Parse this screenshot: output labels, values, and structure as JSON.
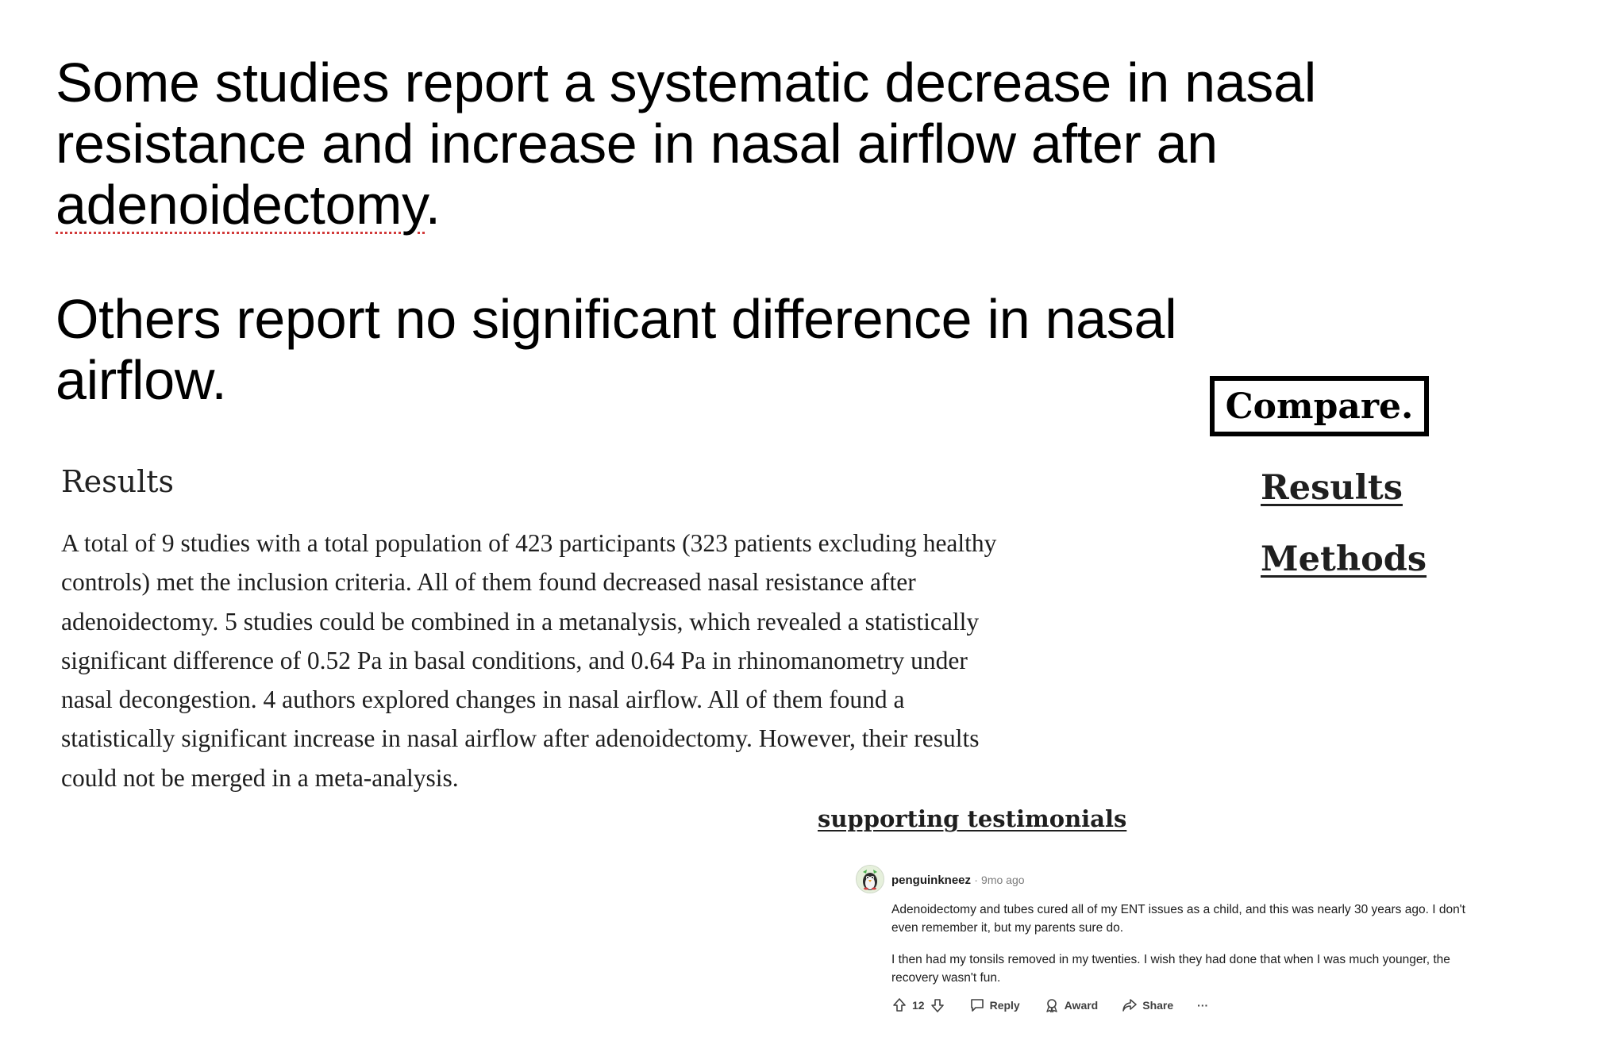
{
  "claims": {
    "claim1_before": "Some studies report a systematic decrease in nasal resistance and increase in nasal airflow after an ",
    "claim1_term": "adenoidectomy",
    "claim1_after": ".",
    "claim2": "Others report no significant difference in nasal airflow."
  },
  "sidebar": {
    "compare_label": "Compare.",
    "links": [
      "Results",
      "Methods"
    ]
  },
  "results": {
    "heading": "Results",
    "body": "A total of 9 studies with a total population of 423 participants (323 patients excluding healthy controls) met the inclusion criteria. All of them found decreased nasal resistance after adenoidectomy. 5 studies could be combined in a metanalysis, which revealed a statistically significant difference of 0.52 Pa in basal conditions, and 0.64 Pa in rhinomanometry under nasal decongestion. 4 authors explored changes in nasal airflow. All of them found a statistically significant increase in nasal airflow after adenoidectomy. However, their results could not be merged in a meta-analysis."
  },
  "testimonials": {
    "link_label": "supporting testimonials"
  },
  "comment": {
    "username": "penguinkneez",
    "separator": "·",
    "time": "9mo ago",
    "paragraphs": [
      "Adenoidectomy and tubes cured all of my ENT issues as a child, and this was nearly 30 years ago. I don't even remember it, but my parents sure do.",
      "I then had my tonsils removed in my twenties. I wish they had done that when I was much younger, the recovery wasn't fun."
    ],
    "votes": "12",
    "reply_label": "Reply",
    "award_label": "Award",
    "share_label": "Share",
    "more_label": "···"
  },
  "colors": {
    "spellcheck_underline": "#d23a3a",
    "text": "#1e1e1e",
    "meta": "#7c7c7c"
  }
}
